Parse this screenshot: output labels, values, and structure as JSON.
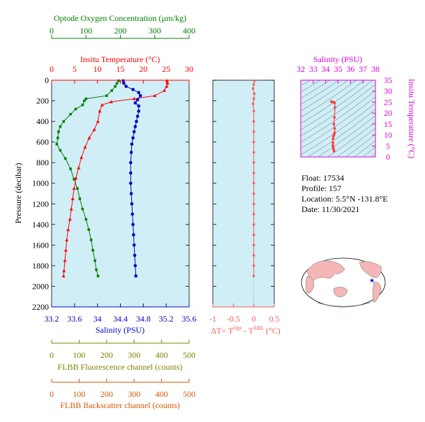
{
  "colors": {
    "oxygen": "#008000",
    "temperature": "#ff0000",
    "salinity": "#0000cc",
    "delta_t": "#ff5a5a",
    "ts_curve": "#ff4040",
    "ts_axis": "#dd00dd",
    "fluorescence": "#808000",
    "backscatter": "#dd5500",
    "panel_bg": "#d0eef6",
    "map_land": "#f4b6b6",
    "float_marker": "#0000ff"
  },
  "labels": {
    "oxygen_axis": "Optode Oxygen Concentration (µm/kg)",
    "temperature_axis": "Insitu Temperature (°C)",
    "pressure_axis": "Pressure (decibar)",
    "salinity_axis": "Salinity (PSU)",
    "delta_t_axis": "ΔT= T",
    "delta_t_sup1": "Opt",
    "delta_t_mid": " - T",
    "delta_t_sup2": "SBE",
    "delta_t_unit": " (°C)",
    "ts_salinity_axis": "Salinity (PSU)",
    "ts_temperature_axis": "Insitu Temperature (°C)",
    "fluorescence_axis": "FLBB Fluorescence channel (counts)",
    "backscatter_axis": "FLBB Backscatter channel (counts)"
  },
  "info": {
    "float": "Float:  17534",
    "profile": "Profile:  157",
    "location": "Location:  5.5°N  -131.8°E",
    "date": "Date:  11/30/2021"
  },
  "chart_data": [
    {
      "type": "line",
      "id": "profile-oxygen",
      "xlabel": "Optode Oxygen Concentration (µm/kg)",
      "ylabel": "Pressure (decibar)",
      "xlim": [
        0,
        400
      ],
      "ylim": [
        2200,
        0
      ],
      "x_ticks": [
        0,
        100,
        200,
        300,
        400
      ],
      "y_ticks": [
        0,
        200,
        400,
        600,
        800,
        1000,
        1200,
        1400,
        1600,
        1800,
        2000,
        2200
      ],
      "points": [
        [
          195,
          5
        ],
        [
          190,
          30
        ],
        [
          185,
          60
        ],
        [
          175,
          100
        ],
        [
          160,
          150
        ],
        [
          100,
          180
        ],
        [
          95,
          200
        ],
        [
          90,
          240
        ],
        [
          70,
          280
        ],
        [
          55,
          330
        ],
        [
          35,
          400
        ],
        [
          25,
          450
        ],
        [
          20,
          500
        ],
        [
          18,
          560
        ],
        [
          15,
          620
        ],
        [
          25,
          680
        ],
        [
          40,
          760
        ],
        [
          55,
          860
        ],
        [
          65,
          960
        ],
        [
          75,
          1050
        ],
        [
          82,
          1150
        ],
        [
          90,
          1250
        ],
        [
          100,
          1350
        ],
        [
          108,
          1450
        ],
        [
          115,
          1550
        ],
        [
          120,
          1650
        ],
        [
          126,
          1750
        ],
        [
          130,
          1840
        ],
        [
          135,
          1900
        ]
      ]
    },
    {
      "type": "line",
      "id": "profile-temperature",
      "xlabel": "Insitu Temperature (°C)",
      "xlim": [
        0,
        30
      ],
      "x_ticks": [
        0,
        5,
        10,
        15,
        20,
        25,
        30
      ],
      "points": [
        [
          25.2,
          5
        ],
        [
          25.3,
          30
        ],
        [
          25.1,
          60
        ],
        [
          24.6,
          100
        ],
        [
          22.5,
          150
        ],
        [
          18,
          180
        ],
        [
          13,
          210
        ],
        [
          11,
          240
        ],
        [
          10.5,
          300
        ],
        [
          10.1,
          400
        ],
        [
          9.3,
          480
        ],
        [
          8.2,
          560
        ],
        [
          7.3,
          650
        ],
        [
          6.5,
          750
        ],
        [
          5.9,
          850
        ],
        [
          5.3,
          950
        ],
        [
          4.9,
          1050
        ],
        [
          4.6,
          1150
        ],
        [
          4.3,
          1250
        ],
        [
          4,
          1350
        ],
        [
          3.6,
          1450
        ],
        [
          3.3,
          1550
        ],
        [
          3.1,
          1650
        ],
        [
          2.9,
          1750
        ],
        [
          2.7,
          1850
        ],
        [
          2.6,
          1900
        ]
      ]
    },
    {
      "type": "line",
      "id": "profile-salinity",
      "xlabel": "Salinity (PSU)",
      "xlim": [
        33.2,
        35.6
      ],
      "x_ticks": [
        33.2,
        33.6,
        34.0,
        34.4,
        34.8,
        35.2,
        35.6
      ],
      "points": [
        [
          34.45,
          5
        ],
        [
          34.46,
          30
        ],
        [
          34.5,
          60
        ],
        [
          34.62,
          90
        ],
        [
          34.72,
          120
        ],
        [
          34.75,
          150
        ],
        [
          34.7,
          190
        ],
        [
          34.66,
          220
        ],
        [
          34.72,
          250
        ],
        [
          34.72,
          300
        ],
        [
          34.7,
          350
        ],
        [
          34.68,
          400
        ],
        [
          34.66,
          450
        ],
        [
          34.64,
          500
        ],
        [
          34.62,
          560
        ],
        [
          34.6,
          620
        ],
        [
          34.59,
          700
        ],
        [
          34.58,
          800
        ],
        [
          34.58,
          900
        ],
        [
          34.58,
          1000
        ],
        [
          34.59,
          1100
        ],
        [
          34.6,
          1200
        ],
        [
          34.61,
          1300
        ],
        [
          34.62,
          1400
        ],
        [
          34.63,
          1500
        ],
        [
          34.64,
          1600
        ],
        [
          34.65,
          1700
        ],
        [
          34.66,
          1800
        ],
        [
          34.67,
          1900
        ]
      ]
    },
    {
      "type": "scatter",
      "id": "profile-delta-t",
      "xlabel": "ΔT= T^Opt - T^SBE (°C)",
      "xlim": [
        -1.0,
        0.5
      ],
      "ylim": [
        2200,
        0
      ],
      "x_ticks": [
        -1.0,
        -0.5,
        0.0,
        0.5
      ],
      "points": [
        [
          0.02,
          5
        ],
        [
          0,
          40
        ],
        [
          -0.02,
          80
        ],
        [
          0.01,
          130
        ],
        [
          0,
          180
        ],
        [
          -0.02,
          230
        ],
        [
          0,
          300
        ],
        [
          0,
          400
        ],
        [
          0,
          500
        ],
        [
          0,
          600
        ],
        [
          0,
          700
        ],
        [
          0,
          800
        ],
        [
          0,
          900
        ],
        [
          0,
          1000
        ],
        [
          0,
          1100
        ],
        [
          0,
          1200
        ],
        [
          0,
          1300
        ],
        [
          0,
          1400
        ],
        [
          0,
          1500
        ],
        [
          0,
          1600
        ],
        [
          0,
          1700
        ],
        [
          0,
          1800
        ],
        [
          0,
          1900
        ]
      ]
    },
    {
      "type": "line",
      "id": "ts-diagram",
      "xlabel": "Salinity (PSU)",
      "ylabel": "Insitu Temperature (°C)",
      "xlim": [
        32,
        38
      ],
      "ylim": [
        0,
        35
      ],
      "x_ticks": [
        32,
        33,
        34,
        35,
        36,
        37,
        38
      ],
      "y_ticks": [
        0,
        5,
        10,
        15,
        20,
        25,
        30,
        35
      ],
      "points": [
        [
          34.67,
          2.6
        ],
        [
          34.64,
          3.3
        ],
        [
          34.62,
          4
        ],
        [
          34.6,
          4.6
        ],
        [
          34.58,
          5.3
        ],
        [
          34.58,
          6.5
        ],
        [
          34.59,
          8.2
        ],
        [
          34.62,
          9.3
        ],
        [
          34.66,
          10.1
        ],
        [
          34.7,
          10.5
        ],
        [
          34.72,
          11
        ],
        [
          34.72,
          13
        ],
        [
          34.66,
          15
        ],
        [
          34.7,
          18
        ],
        [
          34.75,
          22.5
        ],
        [
          34.72,
          24.6
        ],
        [
          34.62,
          25
        ],
        [
          34.5,
          25.1
        ],
        [
          34.46,
          25.3
        ],
        [
          34.45,
          25.2
        ]
      ]
    },
    {
      "type": "line",
      "id": "flbb-axes",
      "xlabel": "FLBB Fluorescence channel (counts)",
      "xlim": [
        0,
        500
      ],
      "x_ticks": [
        0,
        100,
        200,
        300,
        400,
        500
      ],
      "secondary_xlabel": "FLBB Backscatter channel (counts)",
      "secondary_xlim": [
        0,
        500
      ],
      "secondary_x_ticks": [
        0,
        100,
        200,
        300,
        400,
        500
      ],
      "points": []
    }
  ],
  "map": {
    "marker": "★"
  }
}
